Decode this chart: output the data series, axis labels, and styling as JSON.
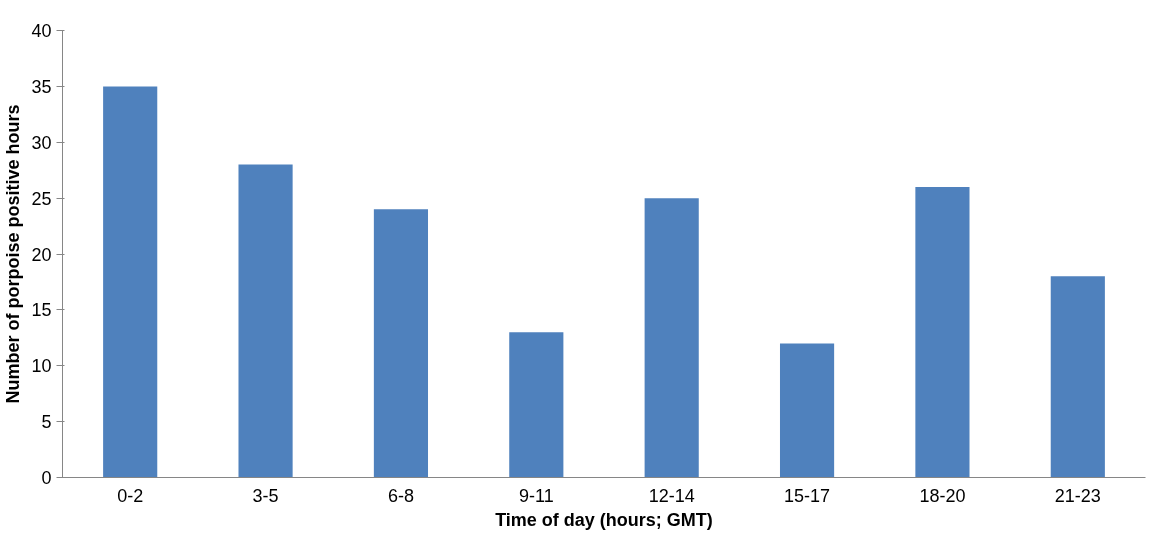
{
  "chart_data": {
    "type": "bar",
    "xlabel": "Time of day (hours; GMT)",
    "ylabel": "Number of porpoise positive hours",
    "categories": [
      "0-2",
      "3-5",
      "6-8",
      "9-11",
      "12-14",
      "15-17",
      "18-20",
      "21-23"
    ],
    "values": [
      35,
      28,
      24,
      13,
      25,
      12,
      26,
      18
    ],
    "color": "#4f81bd",
    "ylim": [
      0,
      40
    ],
    "yticks": [
      0,
      5,
      10,
      15,
      20,
      25,
      30,
      35,
      40
    ],
    "grid": false
  }
}
